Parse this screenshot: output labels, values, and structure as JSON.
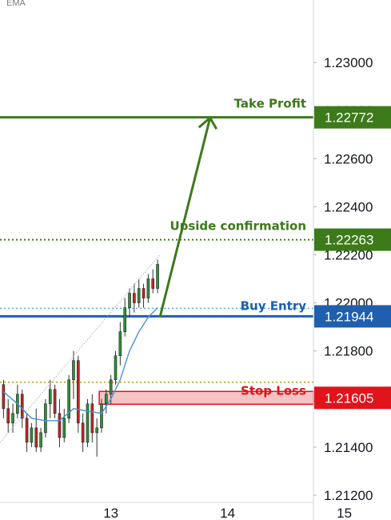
{
  "indicator_label": "EMA",
  "chart_data": {
    "type": "candlestick",
    "ylim": [
      1.2117,
      1.2326
    ],
    "xlim": [
      12.05,
      15.4
    ],
    "y_ticks": [
      {
        "value": 1.23,
        "label": "1.23000"
      },
      {
        "value": 1.228,
        "label": "1.22800"
      },
      {
        "value": 1.226,
        "label": "1.22600"
      },
      {
        "value": 1.224,
        "label": "1.22400"
      },
      {
        "value": 1.222,
        "label": "1.22200"
      },
      {
        "value": 1.22,
        "label": "1.22000"
      },
      {
        "value": 1.218,
        "label": "1.21800"
      },
      {
        "value": 1.216,
        "label": "1.21600"
      },
      {
        "value": 1.214,
        "label": "1.21400"
      },
      {
        "value": 1.212,
        "label": "1.21200"
      }
    ],
    "x_ticks": [
      {
        "value": 13,
        "label": "13"
      },
      {
        "value": 14,
        "label": "14"
      },
      {
        "value": 15,
        "label": "15"
      }
    ],
    "levels": [
      {
        "name": "Take Profit",
        "value": 1.22772,
        "label": "1.22772",
        "color": "#3d7a1a",
        "style": "solid"
      },
      {
        "name": "Upside confirmation",
        "value": 1.22263,
        "label": "1.22263",
        "color": "#3d7a1a",
        "style": "dotted"
      },
      {
        "name": "Buy Entry",
        "value": 1.21944,
        "label": "1.21944",
        "color": "#1f5fae",
        "style": "solid"
      },
      {
        "name": "Stop Loss",
        "value": 1.21605,
        "label": "1.21605",
        "color": "#e0141a",
        "style": "zone"
      }
    ],
    "candles": [
      {
        "x": 12.08,
        "o": 1.2166,
        "h": 1.2168,
        "l": 1.2152,
        "c": 1.2156
      },
      {
        "x": 12.12,
        "o": 1.2156,
        "h": 1.216,
        "l": 1.2146,
        "c": 1.215
      },
      {
        "x": 12.16,
        "o": 1.215,
        "h": 1.2158,
        "l": 1.2146,
        "c": 1.2154
      },
      {
        "x": 12.2,
        "o": 1.2154,
        "h": 1.2166,
        "l": 1.2152,
        "c": 1.2162
      },
      {
        "x": 12.24,
        "o": 1.2162,
        "h": 1.2164,
        "l": 1.2148,
        "c": 1.2152
      },
      {
        "x": 12.28,
        "o": 1.2152,
        "h": 1.2154,
        "l": 1.2138,
        "c": 1.2142
      },
      {
        "x": 12.32,
        "o": 1.2142,
        "h": 1.215,
        "l": 1.214,
        "c": 1.2148
      },
      {
        "x": 12.36,
        "o": 1.2148,
        "h": 1.2156,
        "l": 1.2138,
        "c": 1.214
      },
      {
        "x": 12.4,
        "o": 1.214,
        "h": 1.2148,
        "l": 1.2138,
        "c": 1.2146
      },
      {
        "x": 12.44,
        "o": 1.2146,
        "h": 1.216,
        "l": 1.2144,
        "c": 1.2158
      },
      {
        "x": 12.48,
        "o": 1.2158,
        "h": 1.2168,
        "l": 1.2152,
        "c": 1.2164
      },
      {
        "x": 12.52,
        "o": 1.2164,
        "h": 1.2166,
        "l": 1.2152,
        "c": 1.2154
      },
      {
        "x": 12.56,
        "o": 1.2154,
        "h": 1.216,
        "l": 1.214,
        "c": 1.2144
      },
      {
        "x": 12.6,
        "o": 1.2144,
        "h": 1.2156,
        "l": 1.2142,
        "c": 1.2152
      },
      {
        "x": 12.64,
        "o": 1.2152,
        "h": 1.217,
        "l": 1.215,
        "c": 1.2168
      },
      {
        "x": 12.68,
        "o": 1.2168,
        "h": 1.218,
        "l": 1.216,
        "c": 1.2176
      },
      {
        "x": 12.72,
        "o": 1.2176,
        "h": 1.2178,
        "l": 1.2146,
        "c": 1.215
      },
      {
        "x": 12.76,
        "o": 1.215,
        "h": 1.2154,
        "l": 1.2138,
        "c": 1.2142
      },
      {
        "x": 12.8,
        "o": 1.2142,
        "h": 1.216,
        "l": 1.214,
        "c": 1.2158
      },
      {
        "x": 12.84,
        "o": 1.2158,
        "h": 1.2162,
        "l": 1.2142,
        "c": 1.2146
      },
      {
        "x": 12.88,
        "o": 1.2146,
        "h": 1.2152,
        "l": 1.2136,
        "c": 1.2148
      },
      {
        "x": 12.92,
        "o": 1.2148,
        "h": 1.216,
        "l": 1.2146,
        "c": 1.2158
      },
      {
        "x": 12.96,
        "o": 1.2158,
        "h": 1.2164,
        "l": 1.2154,
        "c": 1.2162
      },
      {
        "x": 13.0,
        "o": 1.2162,
        "h": 1.217,
        "l": 1.2158,
        "c": 1.2168
      },
      {
        "x": 13.04,
        "o": 1.2168,
        "h": 1.218,
        "l": 1.2166,
        "c": 1.2178
      },
      {
        "x": 13.08,
        "o": 1.2178,
        "h": 1.2192,
        "l": 1.2174,
        "c": 1.2188
      },
      {
        "x": 13.12,
        "o": 1.2188,
        "h": 1.2202,
        "l": 1.2186,
        "c": 1.2198
      },
      {
        "x": 13.16,
        "o": 1.2198,
        "h": 1.2206,
        "l": 1.2194,
        "c": 1.2204
      },
      {
        "x": 13.2,
        "o": 1.2204,
        "h": 1.2208,
        "l": 1.2196,
        "c": 1.22
      },
      {
        "x": 13.24,
        "o": 1.22,
        "h": 1.221,
        "l": 1.2198,
        "c": 1.2206
      },
      {
        "x": 13.28,
        "o": 1.2206,
        "h": 1.2208,
        "l": 1.2198,
        "c": 1.2202
      },
      {
        "x": 13.32,
        "o": 1.2202,
        "h": 1.2212,
        "l": 1.22,
        "c": 1.221
      },
      {
        "x": 13.36,
        "o": 1.221,
        "h": 1.2214,
        "l": 1.2204,
        "c": 1.2206
      },
      {
        "x": 13.4,
        "o": 1.2206,
        "h": 1.2218,
        "l": 1.2204,
        "c": 1.2216
      }
    ],
    "ema": [
      [
        12.08,
        1.2163
      ],
      [
        12.2,
        1.2158
      ],
      [
        12.32,
        1.2152
      ],
      [
        12.44,
        1.2151
      ],
      [
        12.56,
        1.2151
      ],
      [
        12.68,
        1.2156
      ],
      [
        12.8,
        1.2155
      ],
      [
        12.92,
        1.2154
      ],
      [
        13.0,
        1.216
      ],
      [
        13.08,
        1.2168
      ],
      [
        13.16,
        1.218
      ],
      [
        13.24,
        1.2188
      ],
      [
        13.32,
        1.2194
      ],
      [
        13.4,
        1.2198
      ]
    ],
    "trend_line": [
      [
        12.05,
        1.2142
      ],
      [
        13.42,
        1.222
      ]
    ],
    "projection_arrow": [
      [
        13.42,
        1.2194
      ],
      [
        13.85,
        1.2277
      ]
    ]
  }
}
